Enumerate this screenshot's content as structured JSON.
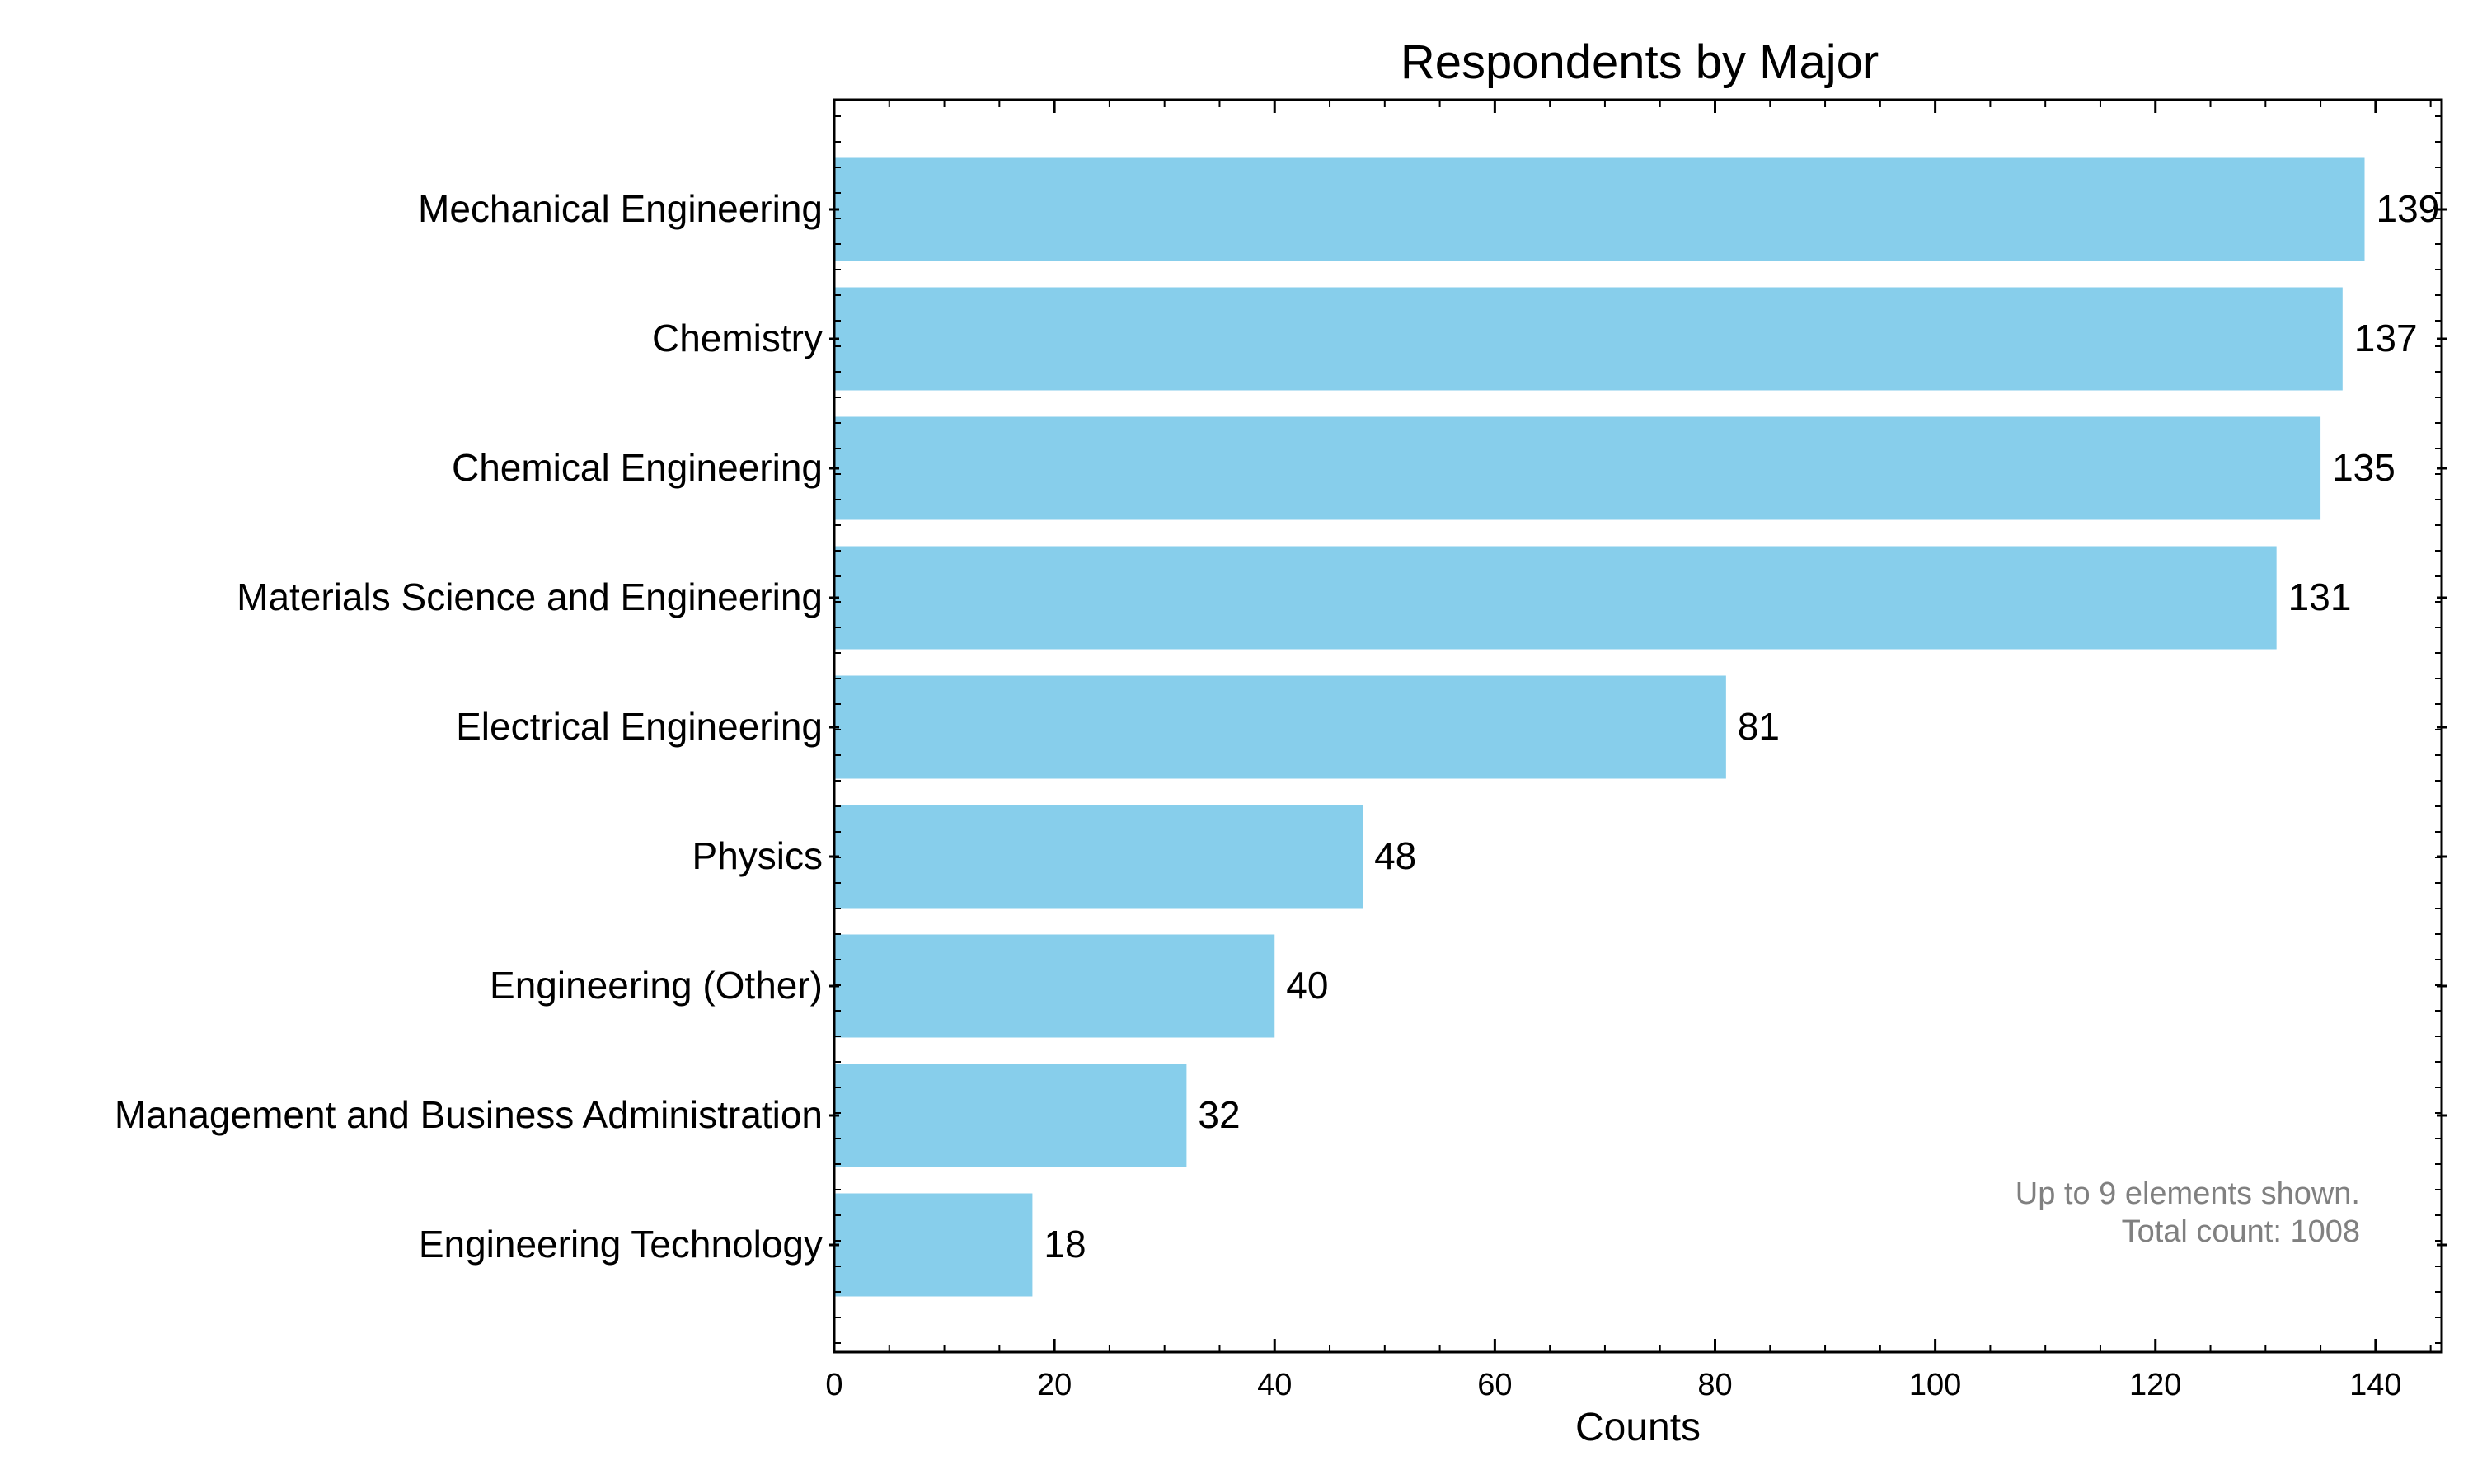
{
  "chart_data": {
    "type": "bar",
    "orientation": "horizontal",
    "title": "Respondents by Major",
    "xlabel": "Counts",
    "ylabel": "",
    "xlim": [
      0,
      146
    ],
    "xticks": [
      0,
      20,
      40,
      60,
      80,
      100,
      120,
      140
    ],
    "categories": [
      "Mechanical Engineering",
      "Chemistry",
      "Chemical Engineering",
      "Materials Science and Engineering",
      "Electrical Engineering",
      "Physics",
      "Engineering (Other)",
      "Management and Business Administration",
      "Engineering Technology"
    ],
    "values": [
      139,
      137,
      135,
      131,
      81,
      48,
      40,
      32,
      18
    ],
    "bar_color": "#87CEEB",
    "grid": false,
    "annotation": [
      "Up to 9 elements shown.",
      "Total count: 1008"
    ]
  }
}
